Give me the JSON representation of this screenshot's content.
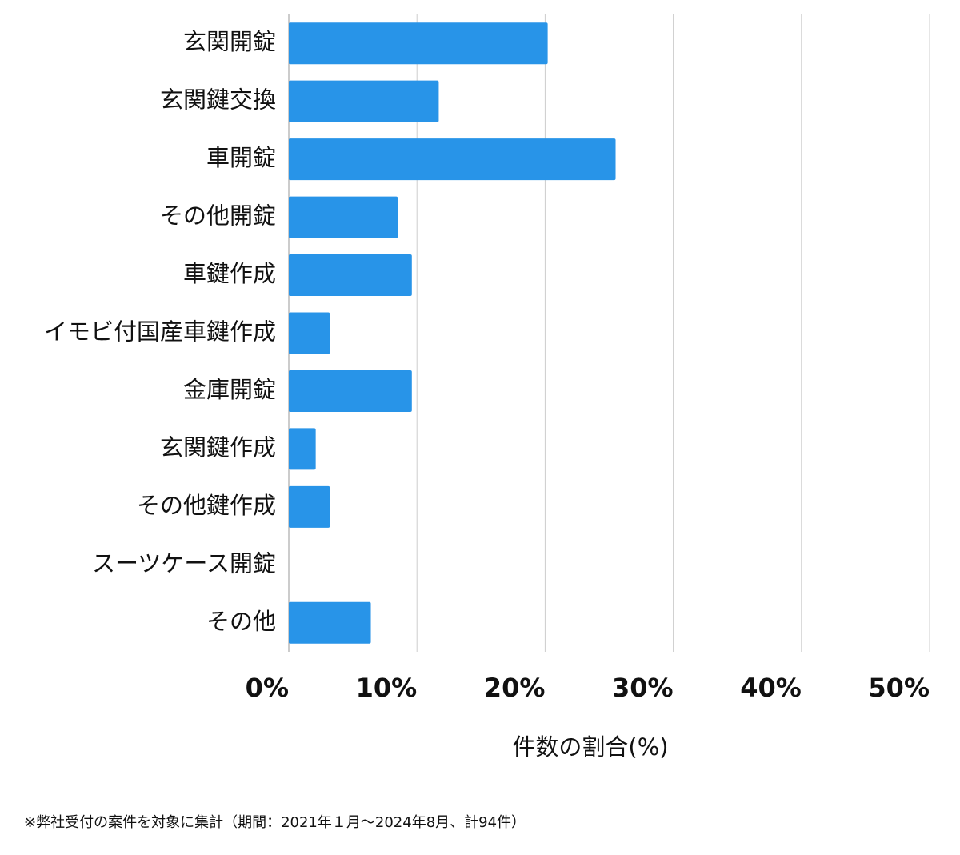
{
  "chart_data": {
    "type": "bar",
    "orientation": "horizontal",
    "categories": [
      "玄関開錠",
      "玄関鍵交換",
      "車開錠",
      "その他開錠",
      "車鍵作成",
      "イモビ付国産車鍵作成",
      "金庫開錠",
      "玄関鍵作成",
      "その他鍵作成",
      "スーツケース開錠",
      "その他"
    ],
    "values": [
      20.2,
      11.7,
      25.5,
      8.5,
      9.6,
      3.2,
      9.6,
      2.1,
      3.2,
      0,
      6.4
    ],
    "color": "#2894e8",
    "xlim": [
      0,
      50
    ],
    "xticks": [
      {
        "value": 0,
        "label": "0%"
      },
      {
        "value": 10,
        "label": "10%"
      },
      {
        "value": 20,
        "label": "20%"
      },
      {
        "value": 30,
        "label": "30%"
      },
      {
        "value": 40,
        "label": "40%"
      },
      {
        "value": 50,
        "label": "50%"
      }
    ],
    "grid": true,
    "xlabel": "件数の割合(%)",
    "footnote": "※弊社受付の案件を対象に集計（期間：2021年１月〜2024年8月、計94件）"
  }
}
